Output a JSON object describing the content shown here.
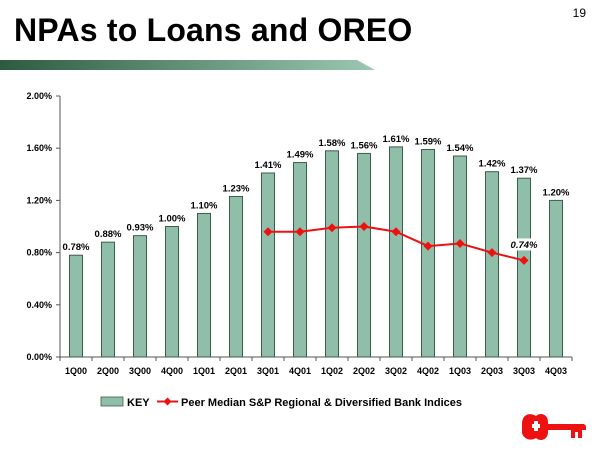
{
  "page": {
    "number": "19",
    "title": "NPAs to Loans and OREO"
  },
  "colors": {
    "bar_fill": "#8fbfa9",
    "bar_stroke": "#3e5c4e",
    "line": "#ee1111",
    "title_bar_start": "#2e5a40",
    "title_bar_end": "#9cc7b2",
    "logo": "#ee1111"
  },
  "logo": {
    "icon": "key-icon"
  },
  "chart_data": {
    "type": "bar",
    "title": "NPAs to Loans and OREO",
    "xlabel": "",
    "ylabel": "",
    "ylim": [
      0,
      2.0
    ],
    "yticks": [
      "0.00%",
      "0.40%",
      "0.80%",
      "1.20%",
      "1.60%",
      "2.00%"
    ],
    "ytick_values": [
      0,
      0.4,
      0.8,
      1.2,
      1.6,
      2.0
    ],
    "grid": false,
    "legend_position": "bottom",
    "categories": [
      "1Q00",
      "2Q00",
      "3Q00",
      "4Q00",
      "1Q01",
      "2Q01",
      "3Q01",
      "4Q01",
      "1Q02",
      "2Q02",
      "3Q02",
      "4Q02",
      "1Q03",
      "2Q03",
      "3Q03",
      "4Q03"
    ],
    "series": [
      {
        "name": "KEY",
        "type": "bar",
        "values": [
          0.78,
          0.88,
          0.93,
          1.0,
          1.1,
          1.23,
          1.41,
          1.49,
          1.58,
          1.56,
          1.61,
          1.59,
          1.54,
          1.42,
          1.37,
          1.2
        ],
        "labels": [
          "0.78%",
          "0.88%",
          "0.93%",
          "1.00%",
          "1.10%",
          "1.23%",
          "1.41%",
          "1.49%",
          "1.58%",
          "1.56%",
          "1.61%",
          "1.59%",
          "1.54%",
          "1.42%",
          "1.37%",
          "1.20%"
        ]
      },
      {
        "name": "Peer Median S&P Regional & Diversified Bank Indices",
        "type": "line",
        "values": [
          null,
          null,
          null,
          null,
          null,
          null,
          0.96,
          0.96,
          0.99,
          1.0,
          0.96,
          0.85,
          0.87,
          0.8,
          0.74,
          null
        ],
        "annotation": {
          "index": 14,
          "text": "0.74%"
        }
      }
    ]
  }
}
